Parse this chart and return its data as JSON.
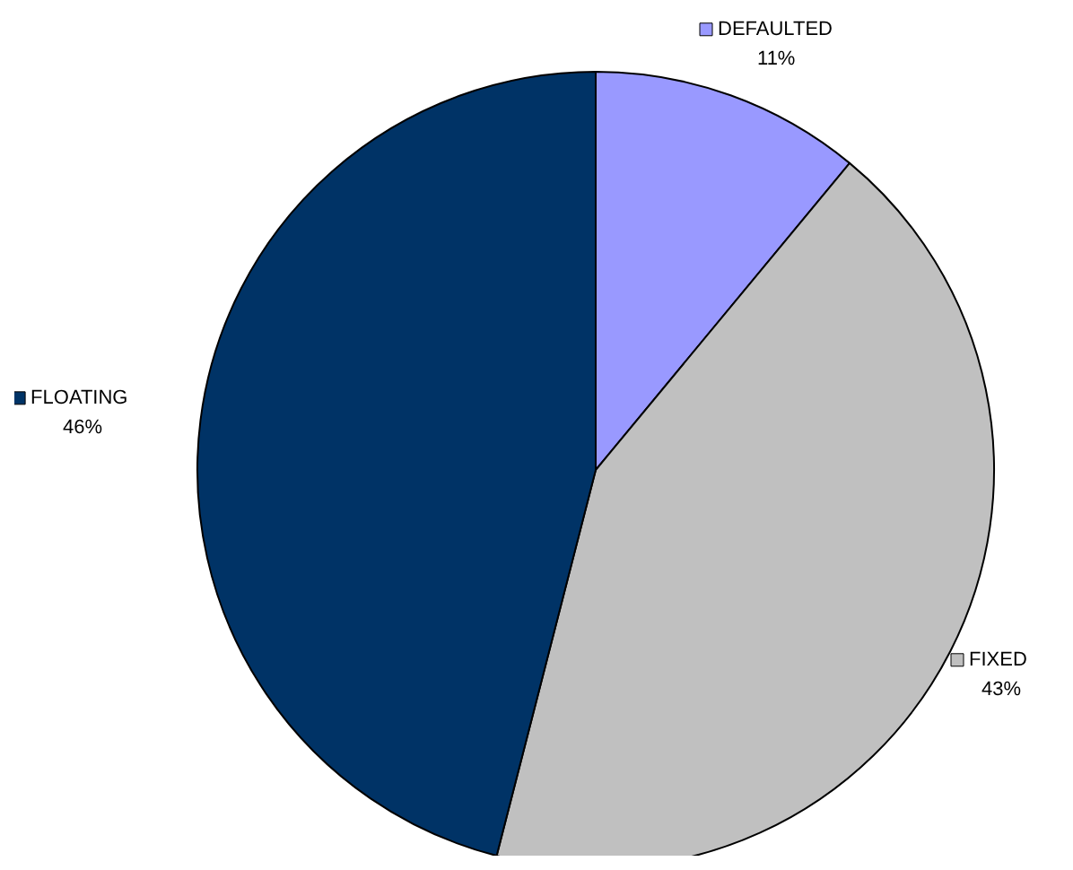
{
  "chart_data": {
    "type": "pie",
    "categories": [
      "DEFAULTED",
      "FIXED",
      "FLOATING"
    ],
    "values": [
      11,
      43,
      46
    ],
    "colors": [
      "#9999ff",
      "#c0c0c0",
      "#003366"
    ],
    "value_labels": [
      "11%",
      "43%",
      "46%"
    ],
    "legend": "top left"
  }
}
